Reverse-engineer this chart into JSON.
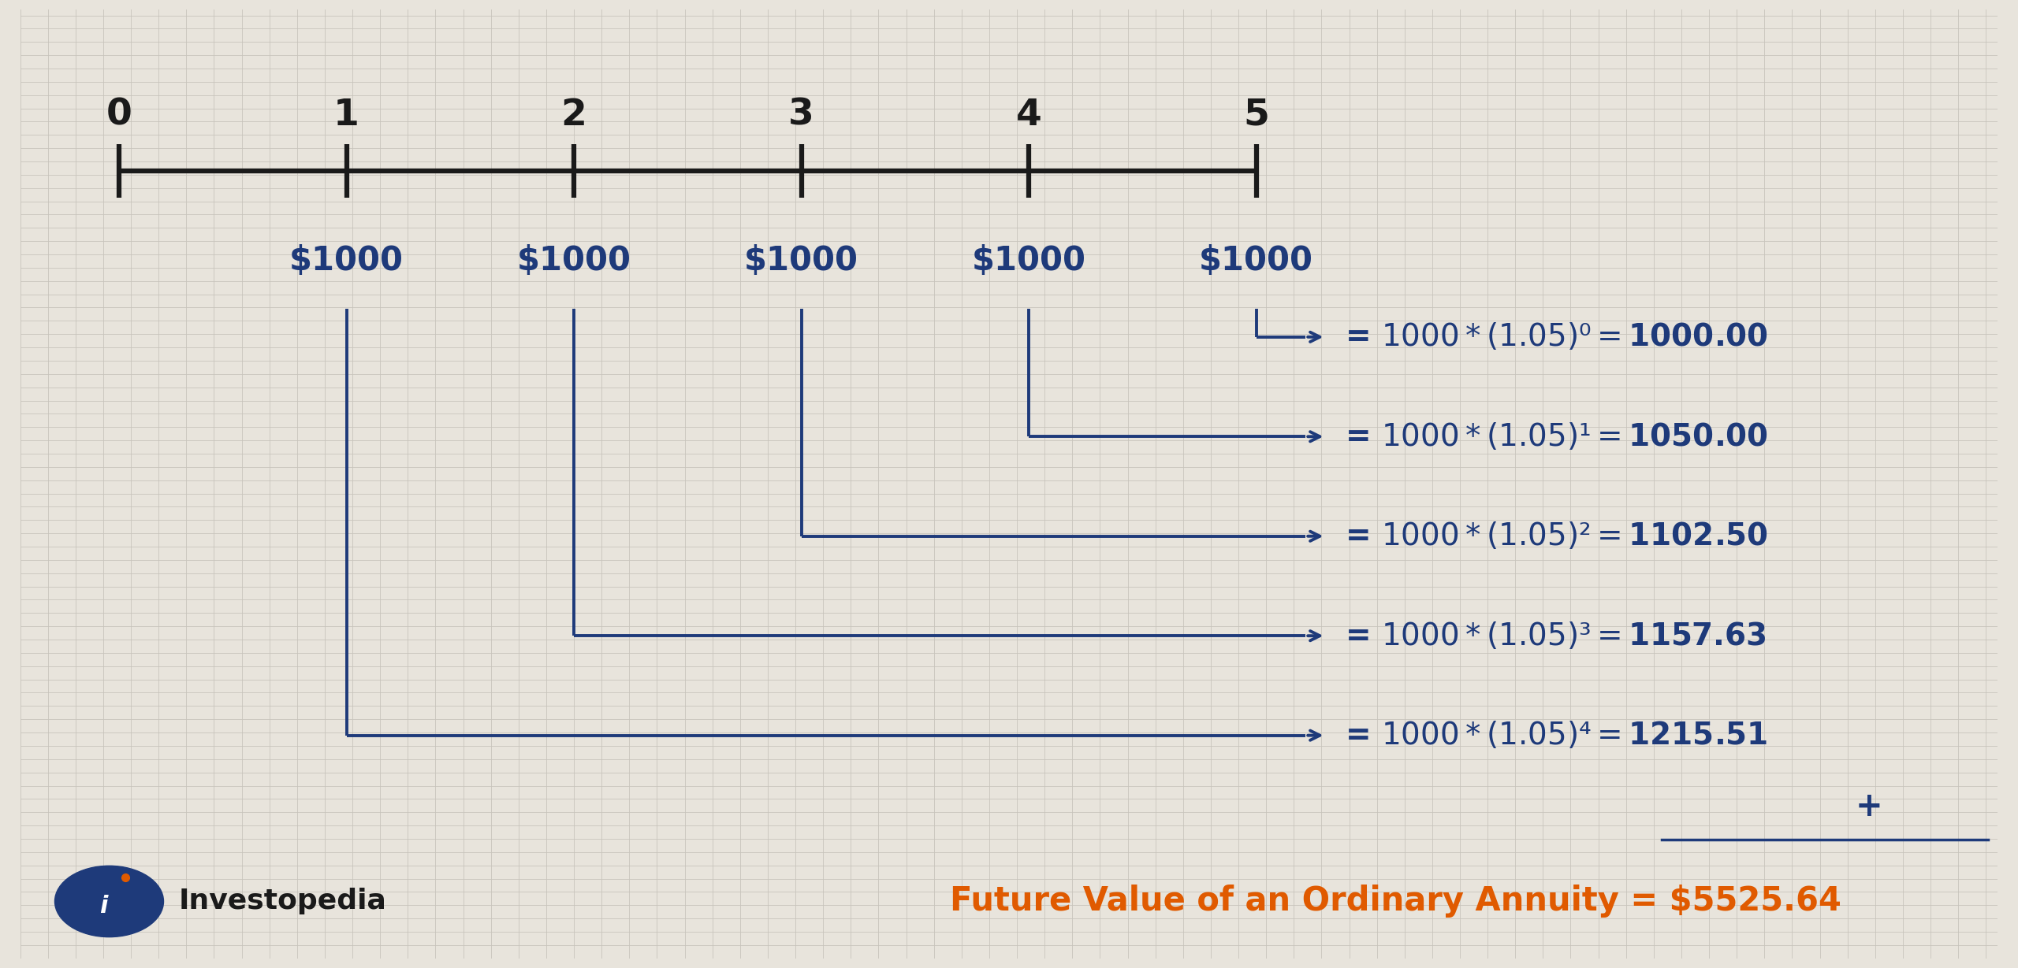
{
  "bg_color": "#e8e4dc",
  "grid_color": "#c8c4bc",
  "timeline_color": "#1a1a1a",
  "arrow_color": "#1e3a7a",
  "text_color_blue": "#1e3a7a",
  "text_color_orange": "#e05a00",
  "text_color_black": "#1a1a1a",
  "tick_labels": [
    "0",
    "1",
    "2",
    "3",
    "4",
    "5"
  ],
  "payment_labels": [
    "$1000",
    "$1000",
    "$1000",
    "$1000",
    "$1000"
  ],
  "formulas": [
    "= $1000*(1.05)⁰ = $1000.00",
    "= $1000*(1.05)¹ = $1050.00",
    "= $1000*(1.05)² = $1102.50",
    "= $1000*(1.05)³ = $1157.63",
    "= $1000*(1.05)⁴ = $1215.51"
  ],
  "sum_label": "Future Value of an Ordinary Annuity = $5525.64",
  "plus_label": "+",
  "investopedia_text": "Investopedia",
  "fig_width": 25.6,
  "fig_height": 12.29
}
